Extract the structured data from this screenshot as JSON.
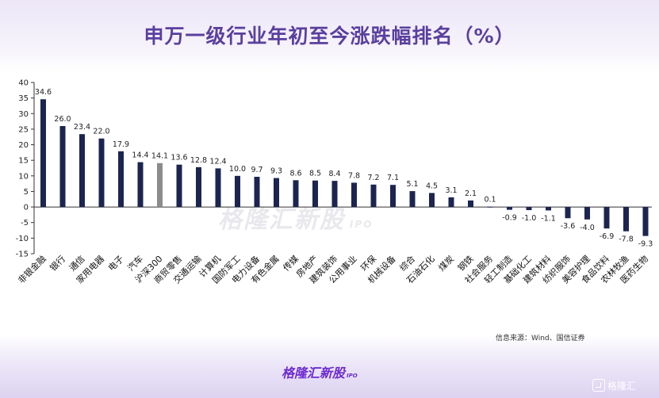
{
  "page": {
    "source": "信息来源：Wind、国信证券",
    "brand": "格隆汇新股",
    "brand_sub": "IPO",
    "watermark": "格隆汇新股",
    "watermark_sub": "IPO",
    "logo": "格隆汇"
  },
  "colors": {
    "bar": "#1b2550",
    "benchmark_bar": "#8c8c8c",
    "negative_bar": "#1b2550",
    "title": "#5a3f9e",
    "brand": "#6d2bd1"
  },
  "chart_data": {
    "type": "bar",
    "title": "申万一级行业年初至今涨跌幅排名（%）",
    "xlabel": "",
    "ylabel": "",
    "ylim": [
      -15,
      40
    ],
    "yticks": [
      40,
      35,
      30,
      25,
      20,
      15,
      10,
      5,
      0,
      -5,
      -10,
      -15
    ],
    "grid": false,
    "legend": "none",
    "categories": [
      "非银金融",
      "银行",
      "通信",
      "家用电器",
      "电子",
      "汽车",
      "沪深300",
      "商贸零售",
      "交通运输",
      "计算机",
      "国防军工",
      "电力设备",
      "有色金属",
      "传媒",
      "房地产",
      "建筑装饰",
      "公用事业",
      "环保",
      "机械设备",
      "综合",
      "石油石化",
      "煤炭",
      "钢铁",
      "社会服务",
      "轻工制造",
      "基础化工",
      "建筑材料",
      "纺织服饰",
      "美容护理",
      "食品饮料",
      "农林牧渔",
      "医药生物"
    ],
    "values": [
      34.6,
      26.0,
      23.4,
      22.0,
      17.9,
      14.4,
      14.1,
      13.6,
      12.8,
      12.4,
      10.0,
      9.7,
      9.3,
      8.6,
      8.5,
      8.4,
      7.8,
      7.2,
      7.1,
      5.1,
      4.5,
      3.1,
      2.1,
      0.1,
      -0.9,
      -1.0,
      -1.1,
      -3.6,
      -4.0,
      -6.9,
      -7.8,
      -9.3
    ],
    "labels": [
      "34.6",
      "26.0",
      "23.4",
      "22.0",
      "17.9",
      "14.4",
      "14.1",
      "13.6",
      "12.8",
      "12.4",
      "10.0",
      "9.7",
      "9.3",
      "8.6",
      "8.5",
      "8.4",
      "7.8",
      "7.2",
      "7.1",
      "5.1",
      "4.5",
      "3.1",
      "2.1",
      "0.1",
      "-0.9",
      "-1.0",
      "-1.1",
      "-3.6",
      "-4.0",
      "-6.9",
      "-7.8",
      "-9.3"
    ],
    "highlight_category": "沪深300"
  }
}
